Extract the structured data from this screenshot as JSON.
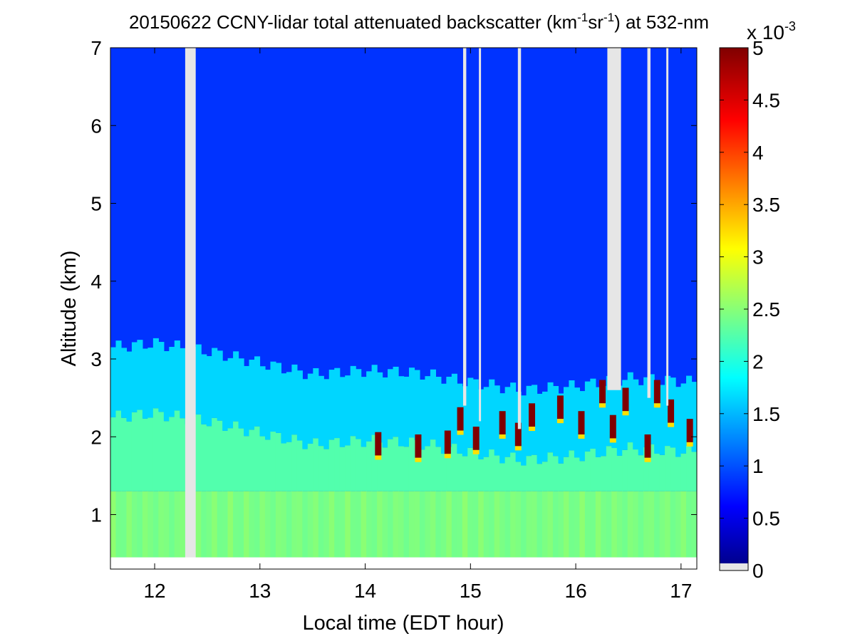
{
  "chart_data": {
    "type": "heatmap",
    "title": {
      "prefix": "20150622 CCNY-lidar total attenuated backscatter (km",
      "sup1": "-1",
      "mid": "sr",
      "sup2": "-1",
      "suffix": ") at 532-nm"
    },
    "xlabel": "Local time (EDT hour)",
    "ylabel": "Altitude (km)",
    "xlim": [
      11.58,
      17.15
    ],
    "ylim": [
      0.3,
      7
    ],
    "x_ticks": [
      12,
      13,
      14,
      15,
      16,
      17
    ],
    "y_ticks": [
      1,
      2,
      3,
      4,
      5,
      6,
      7
    ],
    "colorbar": {
      "min": 0,
      "max": 5,
      "ticks": [
        "0",
        "0.5",
        "1",
        "1.5",
        "2",
        "2.5",
        "3",
        "3.5",
        "4",
        "4.5",
        "5"
      ],
      "exponent_base": "x 10",
      "exponent": "-3",
      "colormap": "jet",
      "colors": [
        "#00008f",
        "#0000ff",
        "#00ffff",
        "#ffff00",
        "#ff0000",
        "#800000"
      ],
      "nodata_color": "#e6e6e6"
    },
    "data_bottom_km": 0.45,
    "free_troposphere_value": 0.8,
    "boundary_layer": {
      "top_km": [
        {
          "t": 11.6,
          "z": 3.15
        },
        {
          "t": 12.0,
          "z": 3.2
        },
        {
          "t": 12.5,
          "z": 3.1
        },
        {
          "t": 13.0,
          "z": 2.95
        },
        {
          "t": 13.5,
          "z": 2.8
        },
        {
          "t": 14.0,
          "z": 2.85
        },
        {
          "t": 14.5,
          "z": 2.82
        },
        {
          "t": 15.0,
          "z": 2.7
        },
        {
          "t": 15.5,
          "z": 2.6
        },
        {
          "t": 16.0,
          "z": 2.65
        },
        {
          "t": 16.5,
          "z": 2.75
        },
        {
          "t": 17.15,
          "z": 2.7
        }
      ],
      "upper_value": 1.6,
      "lower_value": 2.2,
      "near_surface_value": 2.5
    },
    "missing_columns": [
      {
        "t0": 12.29,
        "t1": 12.39,
        "z0": 0.3,
        "z1": 7
      },
      {
        "t0": 14.93,
        "t1": 14.96,
        "z0": 2.4,
        "z1": 7
      },
      {
        "t0": 15.08,
        "t1": 15.1,
        "z0": 2.2,
        "z1": 7
      },
      {
        "t0": 15.45,
        "t1": 15.48,
        "z0": 2.1,
        "z1": 7
      },
      {
        "t0": 16.3,
        "t1": 16.43,
        "z0": 2.6,
        "z1": 7
      },
      {
        "t0": 16.68,
        "t1": 16.71,
        "z0": 2.5,
        "z1": 7
      },
      {
        "t0": 16.86,
        "t1": 16.88,
        "z0": 2.4,
        "z1": 7
      }
    ],
    "cloud_cells": [
      {
        "t": 14.12,
        "z": 1.88,
        "v": 5
      },
      {
        "t": 14.5,
        "z": 1.85,
        "v": 5
      },
      {
        "t": 14.78,
        "z": 1.9,
        "v": 5
      },
      {
        "t": 14.9,
        "z": 2.2,
        "v": 5
      },
      {
        "t": 15.05,
        "z": 1.95,
        "v": 5
      },
      {
        "t": 15.3,
        "z": 2.15,
        "v": 5
      },
      {
        "t": 15.45,
        "z": 2.0,
        "v": 5
      },
      {
        "t": 15.58,
        "z": 2.25,
        "v": 5
      },
      {
        "t": 15.85,
        "z": 2.35,
        "v": 5
      },
      {
        "t": 16.05,
        "z": 2.15,
        "v": 5
      },
      {
        "t": 16.25,
        "z": 2.55,
        "v": 5
      },
      {
        "t": 16.35,
        "z": 2.1,
        "v": 5
      },
      {
        "t": 16.47,
        "z": 2.45,
        "v": 5
      },
      {
        "t": 16.68,
        "z": 1.85,
        "v": 5
      },
      {
        "t": 16.77,
        "z": 2.55,
        "v": 5
      },
      {
        "t": 16.9,
        "z": 2.3,
        "v": 5
      },
      {
        "t": 17.08,
        "z": 2.05,
        "v": 5
      }
    ]
  }
}
